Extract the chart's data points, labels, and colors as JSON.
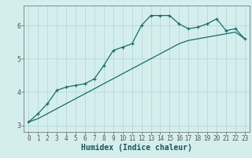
{
  "xlabel": "Humidex (Indice chaleur)",
  "ylabel": "",
  "background_color": "#d4eeee",
  "line_color": "#1a6b6b",
  "grid_color": "#b8d8d8",
  "x_data": [
    0,
    1,
    2,
    3,
    4,
    5,
    6,
    7,
    8,
    9,
    10,
    11,
    12,
    13,
    14,
    15,
    16,
    17,
    18,
    19,
    20,
    21,
    22,
    23
  ],
  "y_line1": [
    3.1,
    3.35,
    3.65,
    4.05,
    4.15,
    4.2,
    4.25,
    4.4,
    4.8,
    5.25,
    5.35,
    5.45,
    6.0,
    6.3,
    6.3,
    6.3,
    6.05,
    5.9,
    5.95,
    6.05,
    6.2,
    5.85,
    5.9,
    5.6
  ],
  "y_line2": [
    3.1,
    3.2,
    3.35,
    3.5,
    3.65,
    3.8,
    3.95,
    4.1,
    4.25,
    4.4,
    4.55,
    4.7,
    4.85,
    5.0,
    5.15,
    5.3,
    5.45,
    5.55,
    5.6,
    5.65,
    5.7,
    5.75,
    5.8,
    5.6
  ],
  "ylim": [
    2.8,
    6.6
  ],
  "yticks": [
    3,
    4,
    5,
    6
  ],
  "xtick_labels": [
    "0",
    "1",
    "2",
    "3",
    "4",
    "5",
    "6",
    "7",
    "8",
    "9",
    "10",
    "11",
    "12",
    "13",
    "14",
    "15",
    "16",
    "17",
    "18",
    "19",
    "20",
    "21",
    "22",
    "23"
  ],
  "tick_fontsize": 5.5,
  "xlabel_fontsize": 7
}
